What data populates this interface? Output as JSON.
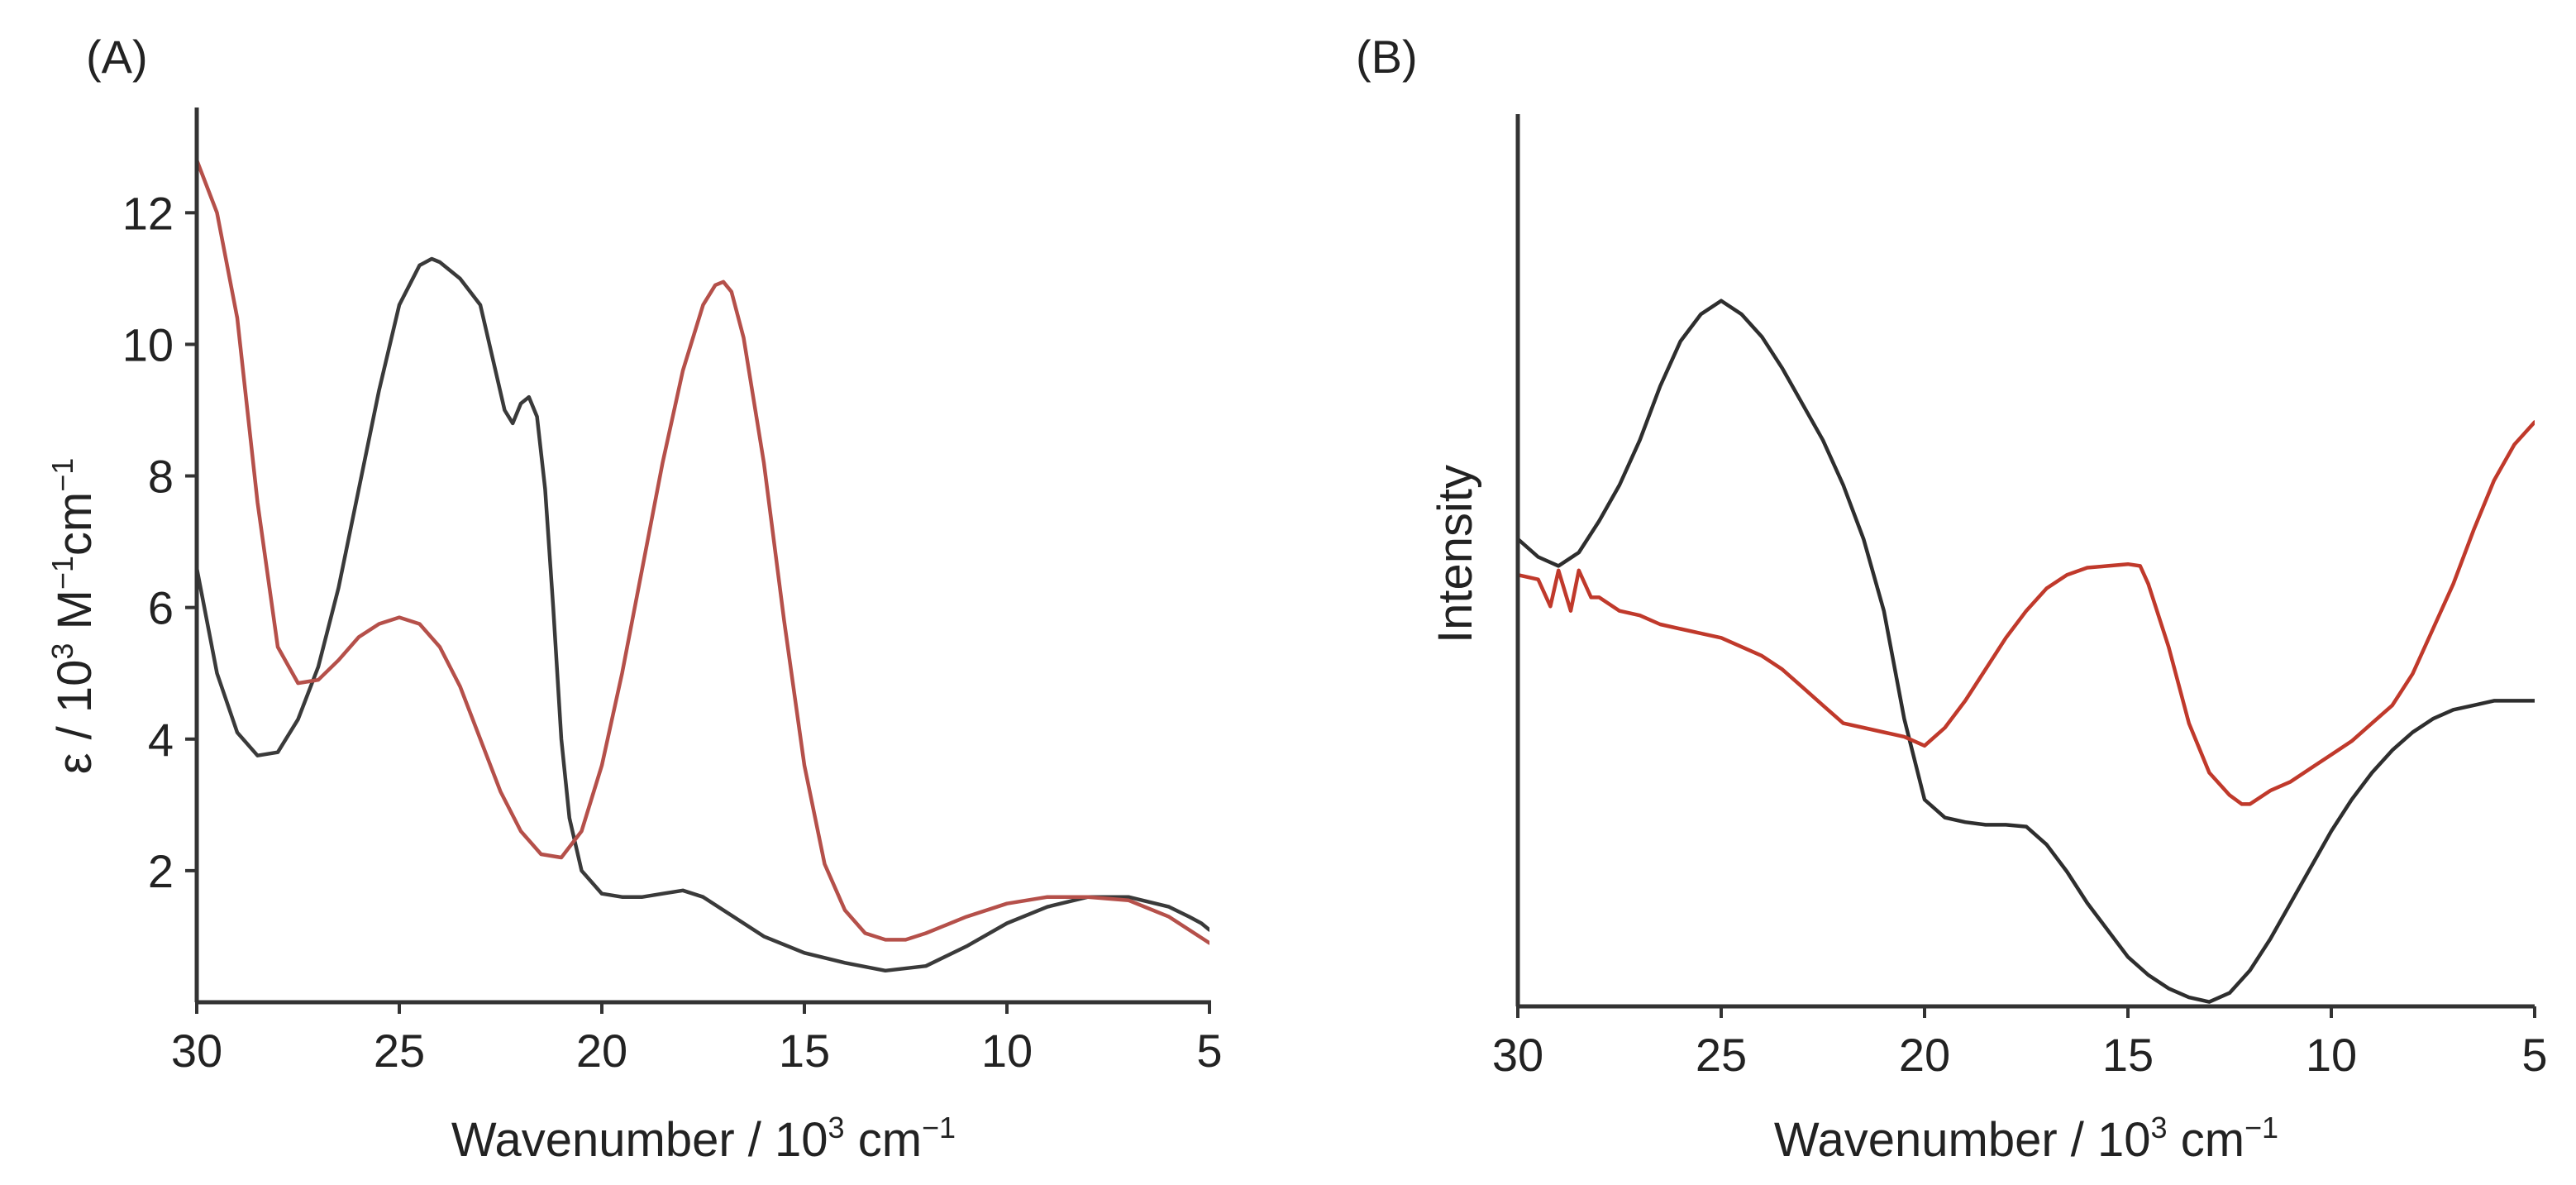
{
  "chart_data": [
    {
      "panel": "(A)",
      "type": "line",
      "xlabel_main": "Wavenumber / 10",
      "xlabel_sup": "3",
      "xlabel_tail": " cm",
      "xlabel_tail_sup": "−1",
      "ylabel_main": "ε / 10",
      "ylabel_sup": "3",
      "ylabel_mid": " M",
      "ylabel_mid_sup": "−1",
      "ylabel_tail": "cm",
      "ylabel_tail_sup": "−1",
      "xlim": [
        30,
        5
      ],
      "ylim": [
        0,
        13.6
      ],
      "xticks": [
        30,
        25,
        20,
        15,
        10,
        5
      ],
      "yticks": [
        2,
        4,
        6,
        8,
        10,
        12
      ],
      "xticklabels": [
        "30",
        "25",
        "20",
        "15",
        "10",
        "5"
      ],
      "yticklabels": [
        "2",
        "4",
        "6",
        "8",
        "10",
        "12"
      ],
      "series": [
        {
          "name": "black",
          "color": "#3a3a3a",
          "x": [
            30,
            29.5,
            29,
            28.5,
            28,
            27.5,
            27,
            26.5,
            26,
            25.5,
            25,
            24.5,
            24.2,
            24,
            23.5,
            23,
            22.7,
            22.4,
            22.2,
            22,
            21.8,
            21.6,
            21.4,
            21.2,
            21,
            20.8,
            20.5,
            20,
            19.5,
            19,
            18.5,
            18,
            17.5,
            17,
            16,
            15,
            14,
            13,
            12,
            11,
            10,
            9,
            8,
            7,
            6,
            5.5,
            5.2,
            5
          ],
          "y": [
            6.6,
            5.0,
            4.1,
            3.75,
            3.8,
            4.3,
            5.1,
            6.3,
            7.8,
            9.3,
            10.6,
            11.2,
            11.3,
            11.25,
            11.0,
            10.6,
            9.8,
            9.0,
            8.8,
            9.1,
            9.2,
            8.9,
            7.8,
            6.0,
            4.0,
            2.8,
            2.0,
            1.65,
            1.6,
            1.6,
            1.65,
            1.7,
            1.6,
            1.4,
            1.0,
            0.75,
            0.6,
            0.48,
            0.55,
            0.85,
            1.2,
            1.45,
            1.6,
            1.6,
            1.45,
            1.3,
            1.2,
            1.1
          ]
        },
        {
          "name": "red",
          "color": "#b5504a",
          "x": [
            30,
            29.5,
            29,
            28.5,
            28,
            27.5,
            27,
            26.5,
            26,
            25.5,
            25,
            24.5,
            24,
            23.5,
            23,
            22.5,
            22,
            21.5,
            21,
            20.5,
            20,
            19.5,
            19,
            18.5,
            18,
            17.5,
            17.2,
            17,
            16.8,
            16.5,
            16,
            15.5,
            15,
            14.5,
            14,
            13.5,
            13,
            12.5,
            12,
            11,
            10,
            9,
            8,
            7,
            6,
            5.5,
            5
          ],
          "y": [
            12.8,
            12.0,
            10.4,
            7.6,
            5.4,
            4.85,
            4.9,
            5.2,
            5.55,
            5.75,
            5.85,
            5.75,
            5.4,
            4.8,
            4.0,
            3.2,
            2.6,
            2.25,
            2.2,
            2.6,
            3.6,
            5.0,
            6.6,
            8.2,
            9.6,
            10.6,
            10.9,
            10.95,
            10.8,
            10.1,
            8.2,
            5.8,
            3.6,
            2.1,
            1.4,
            1.05,
            0.95,
            0.95,
            1.05,
            1.3,
            1.5,
            1.6,
            1.6,
            1.55,
            1.3,
            1.1,
            0.9
          ]
        }
      ]
    },
    {
      "panel": "(B)",
      "type": "line",
      "xlabel_main": "Wavenumber / 10",
      "xlabel_sup": "3",
      "xlabel_tail": " cm",
      "xlabel_tail_sup": "−1",
      "ylabel": "Intensity",
      "xlim": [
        30,
        5
      ],
      "ylim": [
        0,
        100
      ],
      "xticks": [
        30,
        25,
        20,
        15,
        10,
        5
      ],
      "xticklabels": [
        "30",
        "25",
        "20",
        "15",
        "10",
        "5"
      ],
      "series": [
        {
          "name": "black",
          "color": "#2e2e2e",
          "x": [
            30,
            29.5,
            29,
            28.5,
            28,
            27.5,
            27,
            26.5,
            26,
            25.5,
            25,
            24.5,
            24,
            23.5,
            23,
            22.5,
            22,
            21.5,
            21,
            20.5,
            20,
            19.5,
            19,
            18.5,
            18,
            17.5,
            17,
            16.5,
            16,
            15.5,
            15,
            14.5,
            14,
            13.5,
            13,
            12.5,
            12,
            11.5,
            11,
            10.5,
            10,
            9.5,
            9,
            8.5,
            8,
            7.5,
            7,
            6.5,
            6,
            5.5,
            5
          ],
          "y": [
            52,
            50,
            49,
            50.5,
            54,
            58,
            63,
            69,
            74,
            77,
            78.5,
            77,
            74.5,
            71,
            67,
            63,
            58,
            52,
            44,
            32,
            23,
            21,
            20.5,
            20.2,
            20.2,
            20,
            18,
            15,
            11.5,
            8.5,
            5.5,
            3.5,
            2,
            1,
            0.5,
            1.5,
            4,
            7.5,
            11.5,
            15.5,
            19.5,
            23,
            26,
            28.5,
            30.5,
            32,
            33,
            33.5,
            34,
            34,
            34
          ]
        },
        {
          "name": "red",
          "color": "#c0392b",
          "x": [
            30,
            29.5,
            29.2,
            29,
            28.7,
            28.5,
            28.2,
            28,
            27.5,
            27,
            26.5,
            26,
            25.5,
            25,
            24.5,
            24,
            23.5,
            23,
            22.5,
            22,
            21.5,
            21,
            20.5,
            20,
            19.5,
            19,
            18.5,
            18,
            17.5,
            17,
            16.5,
            16,
            15.5,
            15,
            14.7,
            14.5,
            14,
            13.5,
            13,
            12.5,
            12.2,
            12,
            11.5,
            11,
            10.5,
            10,
            9.5,
            9,
            8.5,
            8,
            7.5,
            7,
            6.5,
            6,
            5.5,
            5
          ],
          "y": [
            48,
            47.5,
            44.5,
            48.5,
            44,
            48.5,
            45.5,
            45.5,
            44,
            43.5,
            42.5,
            42,
            41.5,
            41,
            40,
            39,
            37.5,
            35.5,
            33.5,
            31.5,
            31,
            30.5,
            30,
            29,
            31,
            34,
            37.5,
            41,
            44,
            46.5,
            48,
            48.8,
            49,
            49.2,
            49,
            47,
            40,
            31.5,
            26,
            23.5,
            22.5,
            22.5,
            24,
            25,
            26.5,
            28,
            29.5,
            31.5,
            33.5,
            37,
            42,
            47,
            53,
            58.5,
            62.5,
            65
          ]
        }
      ]
    }
  ]
}
